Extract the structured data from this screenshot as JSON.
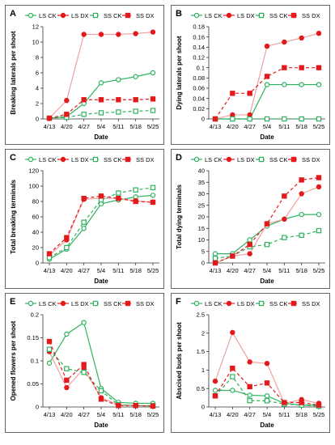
{
  "colors": {
    "green": "#2db35f",
    "red": "#e31a1c",
    "light_red": "#f2a0a0",
    "axis": "#333333"
  },
  "legend_labels": [
    "LS CK",
    "LS DX",
    "SS CK",
    "SS DX"
  ],
  "chart_data": [
    {
      "type": "line",
      "panel_label": "A",
      "x": [
        "4/13",
        "4/20",
        "4/27",
        "5/4",
        "5/11",
        "5/18",
        "5/25"
      ],
      "xlabel": "Date",
      "ylabel": "Breaking laterals per shoot",
      "ylim": [
        0,
        12
      ],
      "yticks": [
        "0",
        "2",
        "4",
        "6",
        "8",
        "10",
        "12"
      ],
      "grid": false,
      "legend": "top",
      "series": [
        {
          "name": "LS CK",
          "values": [
            0.1,
            0.3,
            2.0,
            4.7,
            5.1,
            5.5,
            6.0
          ]
        },
        {
          "name": "LS DX",
          "values": [
            0.1,
            2.4,
            11.0,
            11.0,
            11.0,
            11.1,
            11.3
          ]
        },
        {
          "name": "SS CK",
          "values": [
            0.1,
            0.2,
            0.6,
            0.8,
            0.9,
            1.0,
            1.1
          ]
        },
        {
          "name": "SS DX",
          "values": [
            0.1,
            0.6,
            2.5,
            2.5,
            2.5,
            2.5,
            2.6
          ]
        }
      ]
    },
    {
      "type": "line",
      "panel_label": "B",
      "x": [
        "4/13",
        "4/20",
        "4/27",
        "5/4",
        "5/11",
        "5/18",
        "5/25"
      ],
      "xlabel": "Date",
      "ylabel": "Dying laterals per shoot",
      "ylim": [
        0,
        0.18
      ],
      "yticks": [
        "0",
        "0.02",
        "0.04",
        "0.06",
        "0.08",
        "0.1",
        "0.12",
        "0.14",
        "0.16",
        "0.18"
      ],
      "grid": false,
      "legend": "top",
      "series": [
        {
          "name": "LS CK",
          "values": [
            0,
            0,
            0,
            0.067,
            0.067,
            0.067,
            0.067
          ]
        },
        {
          "name": "LS DX",
          "values": [
            0,
            0.008,
            0.008,
            0.142,
            0.15,
            0.158,
            0.167
          ]
        },
        {
          "name": "SS CK",
          "values": [
            0,
            0,
            0,
            0,
            0,
            0,
            0
          ]
        },
        {
          "name": "SS DX",
          "values": [
            0,
            0.05,
            0.05,
            0.083,
            0.1,
            0.1,
            0.1
          ]
        }
      ]
    },
    {
      "type": "line",
      "panel_label": "C",
      "x": [
        "4/13",
        "4/20",
        "4/27",
        "5/4",
        "5/11",
        "5/18",
        "5/25"
      ],
      "xlabel": "Date",
      "ylabel": "Total breaking terminals",
      "ylim": [
        0,
        120
      ],
      "yticks": [
        "0",
        "20",
        "40",
        "60",
        "80",
        "100",
        "120"
      ],
      "grid": false,
      "legend": "top",
      "series": [
        {
          "name": "LS CK",
          "values": [
            5,
            18,
            45,
            77,
            82,
            86,
            88
          ]
        },
        {
          "name": "LS DX",
          "values": [
            10,
            30,
            83,
            84,
            84,
            81,
            79
          ]
        },
        {
          "name": "SS CK",
          "values": [
            7,
            20,
            53,
            82,
            91,
            95,
            98
          ]
        },
        {
          "name": "SS DX",
          "values": [
            12,
            33,
            84,
            87,
            84,
            80,
            79
          ]
        }
      ]
    },
    {
      "type": "line",
      "panel_label": "D",
      "x": [
        "4/13",
        "4/20",
        "4/27",
        "5/4",
        "5/11",
        "5/18",
        "5/25"
      ],
      "xlabel": "Date",
      "ylabel": "Total dying terminals",
      "ylim": [
        0,
        40
      ],
      "yticks": [
        "0",
        "5",
        "10",
        "15",
        "20",
        "25",
        "30",
        "35",
        "40"
      ],
      "grid": false,
      "legend": "top",
      "series": [
        {
          "name": "LS CK",
          "values": [
            4,
            4,
            10,
            16,
            19,
            21,
            21
          ]
        },
        {
          "name": "LS DX",
          "values": [
            0,
            3,
            4,
            17,
            19,
            30,
            33
          ]
        },
        {
          "name": "SS CK",
          "values": [
            2,
            3,
            7,
            8,
            11,
            12,
            14
          ]
        },
        {
          "name": "SS DX",
          "values": [
            0,
            3,
            8,
            17,
            29,
            36,
            37
          ]
        }
      ]
    },
    {
      "type": "line",
      "panel_label": "E",
      "x": [
        "4/13",
        "4/20",
        "4/27",
        "5/4",
        "5/11",
        "5/18",
        "5/25"
      ],
      "xlabel": "Date",
      "ylabel": "Opened flowers per shoot",
      "ylim": [
        0,
        0.2
      ],
      "yticks": [
        "0",
        "0.05",
        "0.1",
        "0.15",
        "0.2"
      ],
      "grid": false,
      "legend": "top",
      "series": [
        {
          "name": "LS CK",
          "values": [
            0.095,
            0.158,
            0.183,
            0.04,
            0.01,
            0.008,
            0.008
          ]
        },
        {
          "name": "LS DX",
          "values": [
            0.12,
            0.042,
            0.083,
            0.02,
            0.005,
            0.003,
            0.002
          ]
        },
        {
          "name": "SS CK",
          "values": [
            0.125,
            0.083,
            0.075,
            0.035,
            0.005,
            0.003,
            0.003
          ]
        },
        {
          "name": "SS DX",
          "values": [
            0.142,
            0.058,
            0.092,
            0.017,
            0.003,
            0.003,
            0.002
          ]
        }
      ]
    },
    {
      "type": "line",
      "panel_label": "F",
      "x": [
        "4/13",
        "4/20",
        "4/27",
        "5/4",
        "5/11",
        "5/18",
        "5/25"
      ],
      "xlabel": "Date",
      "ylabel": "Abscised buds per shoot",
      "ylim": [
        0,
        2.5
      ],
      "yticks": [
        "0",
        "0.5",
        "1",
        "1.5",
        "2",
        "2.5"
      ],
      "grid": false,
      "legend": "top",
      "series": [
        {
          "name": "LS CK",
          "values": [
            0.45,
            0.45,
            0.32,
            0.3,
            0.1,
            0.05,
            0.05
          ]
        },
        {
          "name": "LS DX",
          "values": [
            0.7,
            2.02,
            1.22,
            1.18,
            0.1,
            0.2,
            0.1
          ]
        },
        {
          "name": "SS CK",
          "values": [
            0.3,
            0.82,
            0.17,
            0.17,
            0.08,
            0.05,
            0.02
          ]
        },
        {
          "name": "SS DX",
          "values": [
            0.3,
            1.05,
            0.55,
            0.65,
            0.12,
            0.12,
            0.05
          ]
        }
      ]
    }
  ]
}
